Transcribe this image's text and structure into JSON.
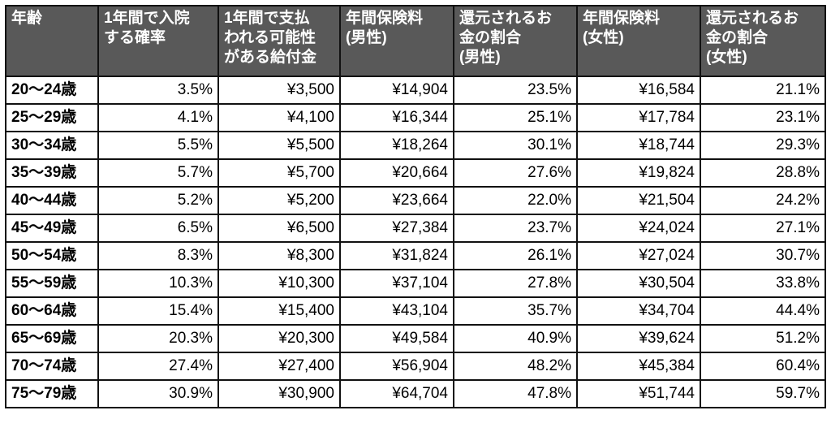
{
  "table": {
    "header": [
      [
        "年齢"
      ],
      [
        "1年間で入院",
        "する確率"
      ],
      [
        "1年間で支払",
        "われる可能性",
        "がある給付金"
      ],
      [
        "年間保険料",
        "(男性)"
      ],
      [
        "還元されるお",
        "金の割合",
        "(男性)"
      ],
      [
        "年間保険料",
        "(女性)"
      ],
      [
        "還元されるお",
        "金の割合",
        "(女性)"
      ]
    ],
    "rows": [
      [
        "20～24歳",
        "3.5%",
        "¥3,500",
        "¥14,904",
        "23.5%",
        "¥16,584",
        "21.1%"
      ],
      [
        "25～29歳",
        "4.1%",
        "¥4,100",
        "¥16,344",
        "25.1%",
        "¥17,784",
        "23.1%"
      ],
      [
        "30～34歳",
        "5.5%",
        "¥5,500",
        "¥18,264",
        "30.1%",
        "¥18,744",
        "29.3%"
      ],
      [
        "35～39歳",
        "5.7%",
        "¥5,700",
        "¥20,664",
        "27.6%",
        "¥19,824",
        "28.8%"
      ],
      [
        "40～44歳",
        "5.2%",
        "¥5,200",
        "¥23,664",
        "22.0%",
        "¥21,504",
        "24.2%"
      ],
      [
        "45～49歳",
        "6.5%",
        "¥6,500",
        "¥27,384",
        "23.7%",
        "¥24,024",
        "27.1%"
      ],
      [
        "50～54歳",
        "8.3%",
        "¥8,300",
        "¥31,824",
        "26.1%",
        "¥27,024",
        "30.7%"
      ],
      [
        "55～59歳",
        "10.3%",
        "¥10,300",
        "¥37,104",
        "27.8%",
        "¥30,504",
        "33.8%"
      ],
      [
        "60～64歳",
        "15.4%",
        "¥15,400",
        "¥43,104",
        "35.7%",
        "¥34,704",
        "44.4%"
      ],
      [
        "65～69歳",
        "20.3%",
        "¥20,300",
        "¥49,584",
        "40.9%",
        "¥39,624",
        "51.2%"
      ],
      [
        "70～74歳",
        "27.4%",
        "¥27,400",
        "¥56,904",
        "48.2%",
        "¥45,384",
        "60.4%"
      ],
      [
        "75～79歳",
        "30.9%",
        "¥30,900",
        "¥64,704",
        "47.8%",
        "¥51,744",
        "59.7%"
      ]
    ]
  }
}
